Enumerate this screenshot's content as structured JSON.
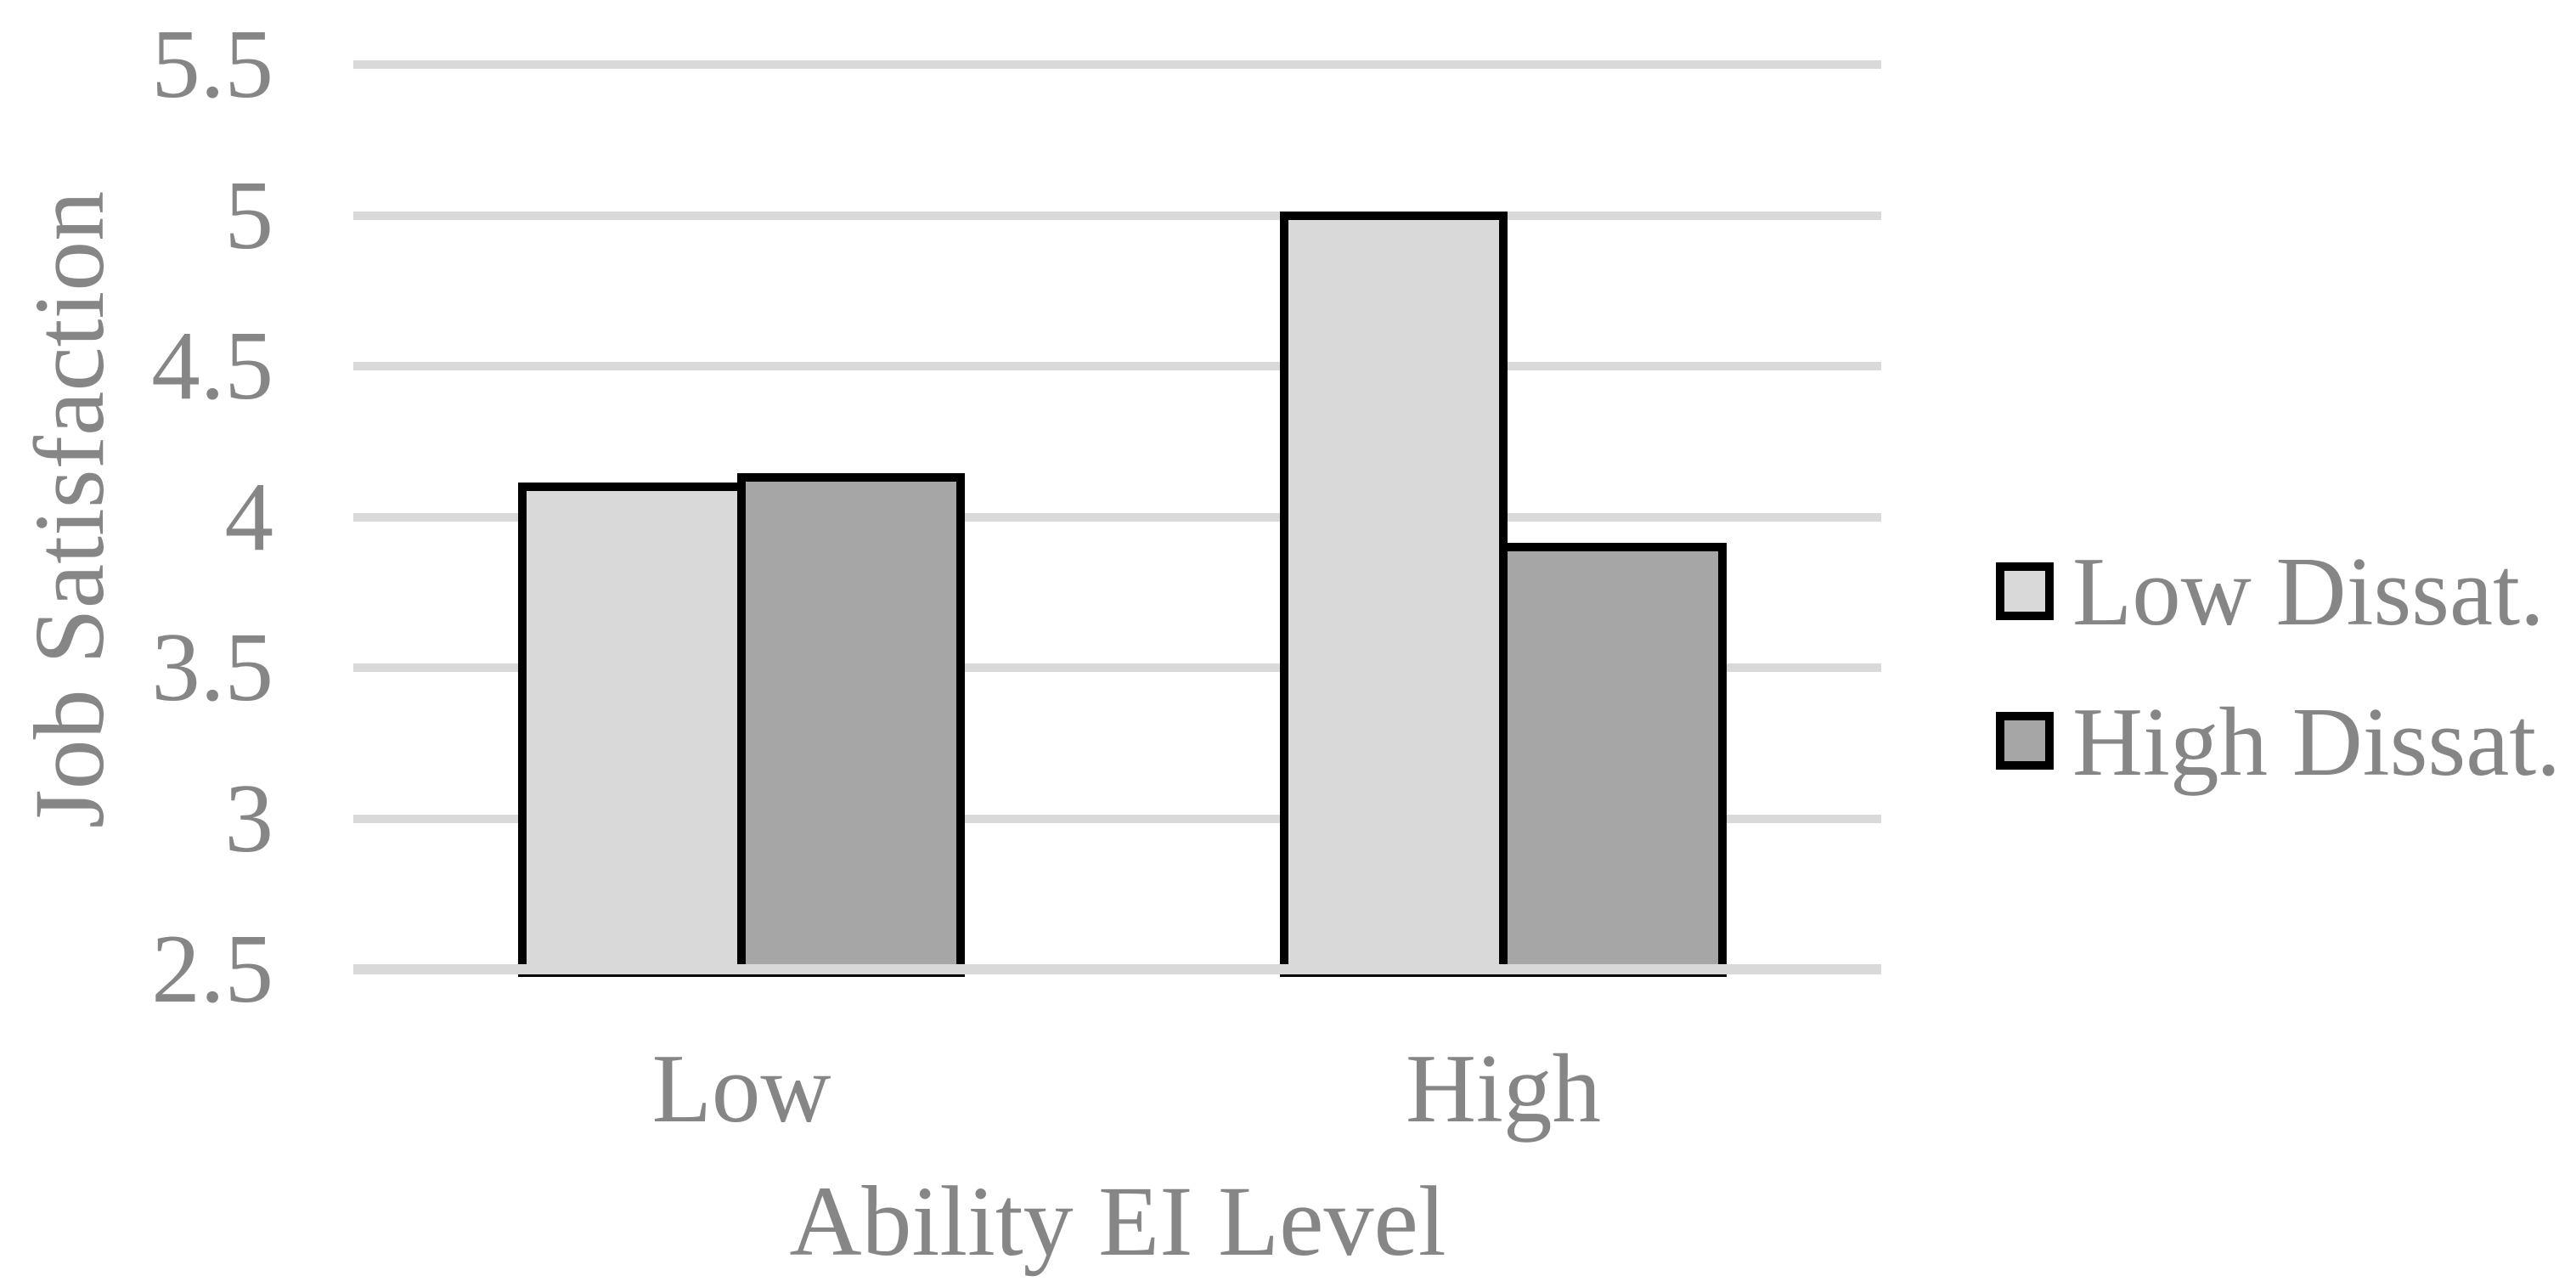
{
  "chart_data": {
    "type": "bar",
    "title": "",
    "categories": [
      "Low",
      "High"
    ],
    "series": [
      {
        "name": "Low Dissat.",
        "color": "#d9d9d9",
        "values": [
          4.1,
          5.0
        ]
      },
      {
        "name": "High Dissat.",
        "color": "#a6a6a6",
        "values": [
          4.13,
          3.9
        ]
      }
    ],
    "xlabel": "Ability EI Level",
    "ylabel": "Job Satisfaction",
    "ylim": [
      2.5,
      5.5
    ],
    "yticks": [
      5.5,
      5,
      4.5,
      4,
      3.5,
      3,
      2.5
    ],
    "ytick_labels": [
      "5.5",
      "5",
      "4.5",
      "4",
      "3.5",
      "3",
      "2.5"
    ],
    "grid": true,
    "legend_position": "right",
    "colors": {
      "bar_border": "#000000",
      "gridline": "#d9d9d9",
      "text": "#868686",
      "background": "#ffffff"
    }
  }
}
